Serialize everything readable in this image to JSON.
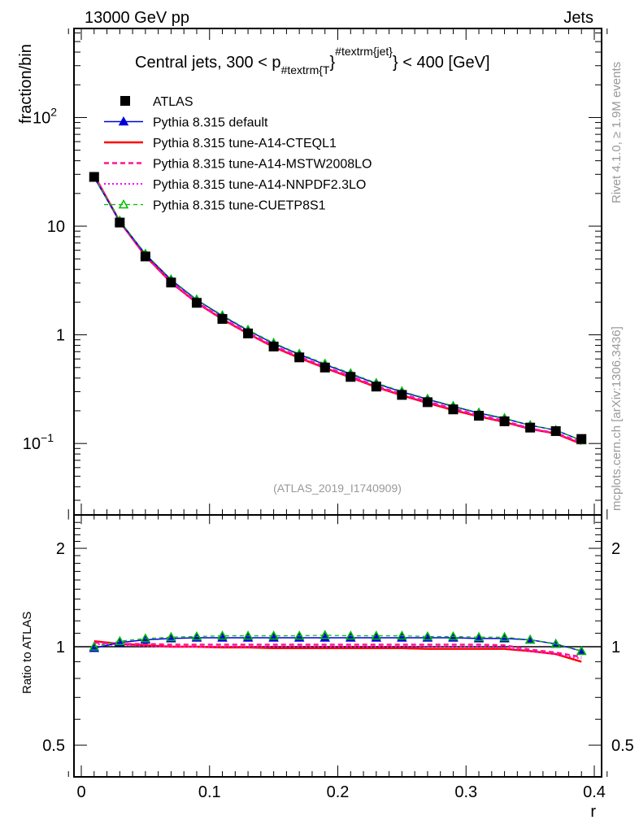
{
  "header": {
    "left": "13000 GeV pp",
    "right": "Jets"
  },
  "side_labels": {
    "rivet": "Rivet 4.1.0, ≥ 1.9M events",
    "mcplots": "mcplots.cern.ch [arXiv:1306.3436]"
  },
  "analysis_id": "(ATLAS_2019_I1740909)",
  "chart_data": [
    {
      "type": "line",
      "title_parts": {
        "pre": "Central jets, 300 < p",
        "sub": "#textrm{T",
        "sup": "#textrm{jet}",
        "post": "} < 400 [GeV]",
        "brace": "}"
      },
      "ylabel": "fraction/bin",
      "yscale": "log",
      "ylim": [
        0.022,
        660
      ],
      "xlim": [
        -0.015,
        0.415
      ],
      "y_ticks": [
        {
          "v": 100,
          "label": "10",
          "exp": "2"
        },
        {
          "v": 10,
          "label": "10"
        },
        {
          "v": 1,
          "label": "1"
        },
        {
          "v": 0.1,
          "label": "10",
          "exp": "−1"
        }
      ],
      "legend_position": "top-left",
      "x": [
        0.01,
        0.03,
        0.05,
        0.07,
        0.09,
        0.11,
        0.13,
        0.15,
        0.17,
        0.19,
        0.21,
        0.23,
        0.25,
        0.27,
        0.29,
        0.31,
        0.33,
        0.35,
        0.37,
        0.39
      ],
      "data": {
        "name": "ATLAS",
        "values": [
          28.4,
          10.8,
          5.26,
          3.03,
          1.97,
          1.4,
          1.03,
          0.78,
          0.62,
          0.5,
          0.41,
          0.334,
          0.28,
          0.24,
          0.206,
          0.18,
          0.16,
          0.14,
          0.13,
          0.11
        ]
      },
      "series": [
        {
          "name": "Pythia 8.315 default",
          "color": "#0000dd",
          "style": "solid",
          "marker": "triangle-filled"
        },
        {
          "name": "Pythia 8.315 tune-A14-CTEQL1",
          "color": "#ff0000",
          "style": "solid-thick",
          "marker": "none"
        },
        {
          "name": "Pythia 8.315 tune-A14-MSTW2008LO",
          "color": "#ff1493",
          "style": "dashed",
          "marker": "none"
        },
        {
          "name": "Pythia 8.315 tune-A14-NNPDF2.3LO",
          "color": "#ff00ff",
          "style": "dotted",
          "marker": "none"
        },
        {
          "name": "Pythia 8.315 tune-CUETP8S1",
          "color": "#00bb00",
          "style": "dashed-thin",
          "marker": "triangle-open"
        }
      ]
    },
    {
      "type": "line",
      "ylabel": "Ratio to ATLAS",
      "xlabel": "r",
      "yscale": "log2",
      "ylim": [
        0.4,
        2.53
      ],
      "y_ticks": [
        {
          "v": 2,
          "label": "2"
        },
        {
          "v": 1,
          "label": "1"
        },
        {
          "v": 0.5,
          "label": "0.5"
        }
      ],
      "x_ticks": [
        {
          "v": 0,
          "label": "0"
        },
        {
          "v": 0.1,
          "label": "0.1"
        },
        {
          "v": 0.2,
          "label": "0.2"
        },
        {
          "v": 0.3,
          "label": "0.3"
        },
        {
          "v": 0.4,
          "label": "0.4"
        }
      ],
      "ratios": [
        [
          0.99,
          1.03,
          1.05,
          1.06,
          1.065,
          1.065,
          1.065,
          1.065,
          1.065,
          1.065,
          1.065,
          1.065,
          1.065,
          1.065,
          1.065,
          1.06,
          1.06,
          1.05,
          1.02,
          0.97
        ],
        [
          1.04,
          1.02,
          1.01,
          1.0,
          1.0,
          0.995,
          0.995,
          0.99,
          0.99,
          0.99,
          0.99,
          0.99,
          0.99,
          0.985,
          0.985,
          0.985,
          0.985,
          0.97,
          0.95,
          0.9
        ],
        [
          1.03,
          1.02,
          1.02,
          1.015,
          1.015,
          1.015,
          1.015,
          1.015,
          1.015,
          1.015,
          1.015,
          1.015,
          1.015,
          1.015,
          1.015,
          1.015,
          1.01,
          0.98,
          0.96,
          0.93
        ],
        [
          1.02,
          1.01,
          1.005,
          1.0,
          1.0,
          1.0,
          1.0,
          1.0,
          1.0,
          1.0,
          1.0,
          1.0,
          1.0,
          1.0,
          1.0,
          1.0,
          0.995,
          0.97,
          0.95,
          0.92
        ],
        [
          1.0,
          1.04,
          1.06,
          1.07,
          1.075,
          1.08,
          1.08,
          1.08,
          1.08,
          1.085,
          1.08,
          1.08,
          1.08,
          1.075,
          1.075,
          1.07,
          1.07,
          1.05,
          1.02,
          0.97
        ]
      ]
    }
  ]
}
